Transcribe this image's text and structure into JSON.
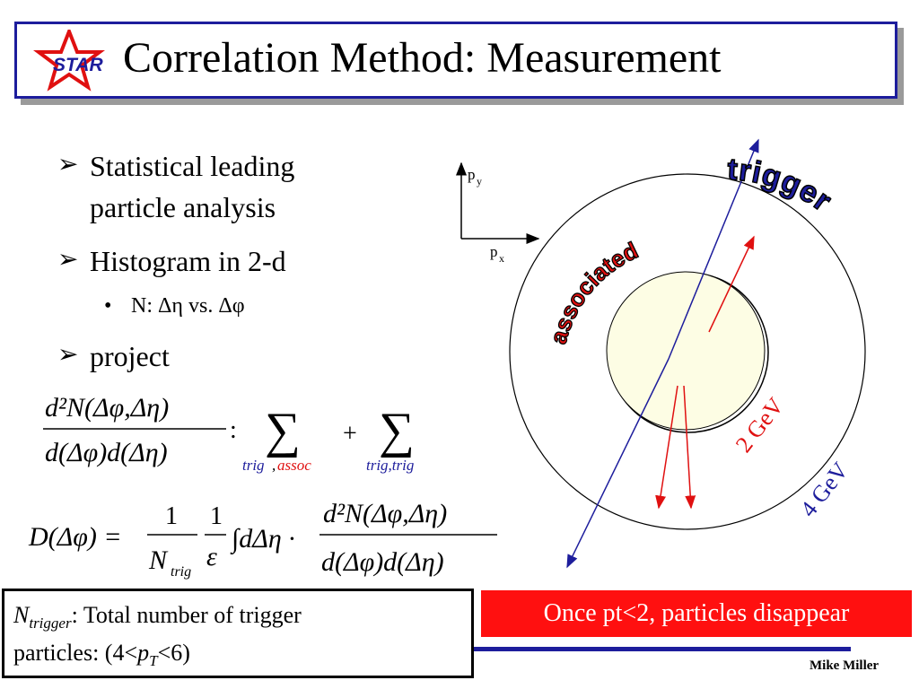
{
  "title": "Correlation Method: Measurement",
  "logo_text": "STAR",
  "bullets": [
    {
      "text": "Statistical leading"
    },
    {
      "text": "particle analysis"
    },
    {
      "text": "Histogram in 2-d"
    },
    {
      "text": "N: Δη vs. Δφ"
    },
    {
      "text": "project"
    }
  ],
  "equation1": {
    "num": "d²N(Δφ,Δη)",
    "den": "d(Δφ)d(Δη)",
    "colon": ":",
    "sum1_sub_trig": "trig",
    "sum1_sub_comma": ",",
    "sum1_sub_assoc": "assoc",
    "plus": "+",
    "sum2_sub": "trig,trig"
  },
  "equation2": {
    "lhs": "D(Δφ) =",
    "frac1_num": "1",
    "frac1_den": "N",
    "frac1_den_sub": "trig",
    "frac2_num": "1",
    "frac2_den": "ε",
    "integral": "∫dΔη ·",
    "frac3_num": "d²N(Δφ,Δη)",
    "frac3_den": "d(Δφ)d(Δη)"
  },
  "axes": {
    "py": "p",
    "py_sub": "y",
    "px": "p",
    "px_sub": "x"
  },
  "labels": {
    "trigger": "trigger",
    "associated": "associated",
    "gev2": "2 GeV",
    "gev4": "4 GeV"
  },
  "ntrigger_box": {
    "n": "N",
    "n_sub": "trigger",
    "text1": ": Total number of trigger",
    "text2": "particles: (4<",
    "pt": "p",
    "pt_sub": "T",
    "text3": "<6)"
  },
  "banner": "Once pt<2, particles disappear",
  "author": "Mike Miller",
  "colors": {
    "blue": "#1d1d9c",
    "red": "#e01010",
    "banner": "#ff1010",
    "core": "#fdfde4"
  }
}
